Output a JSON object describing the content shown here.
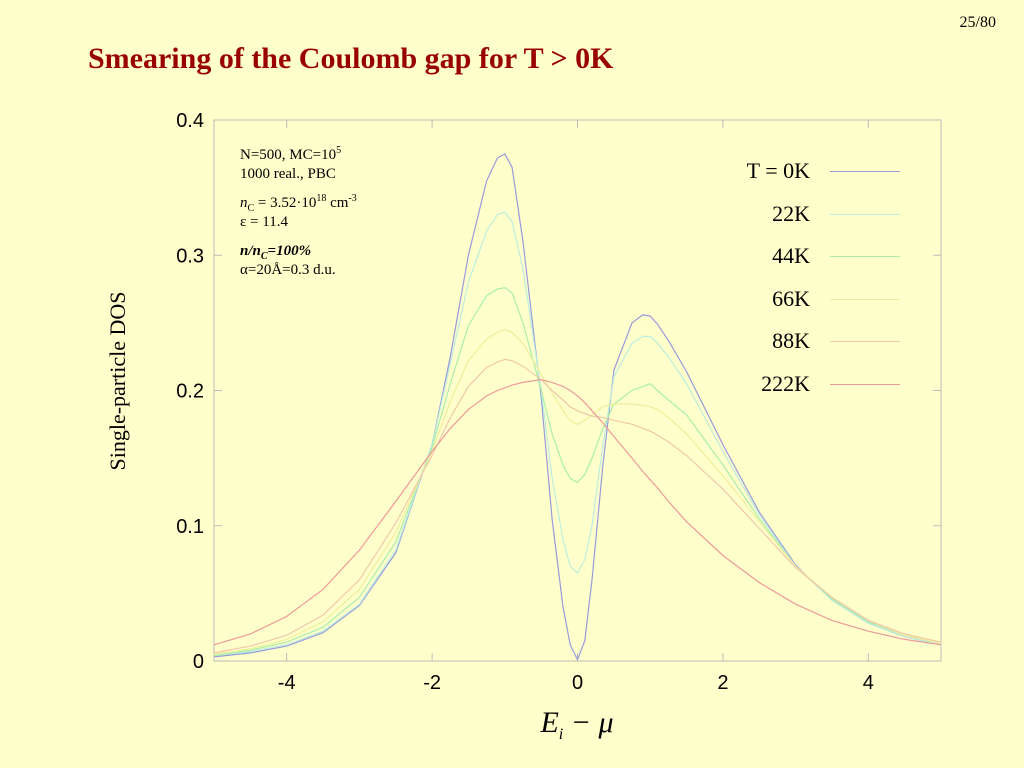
{
  "slide": {
    "number": "25/80",
    "title": "Smearing of the Coulomb gap for T > 0K"
  },
  "annotations": {
    "line1": "N=500, MC=10",
    "line1_sup": "5",
    "line2": "1000 real., PBC",
    "line3_n": "n",
    "line3_sub": "C",
    "line3_mid": " = 3.52·10",
    "line3_sup": "18",
    "line3_unit": " cm",
    "line3_unit_sup": "-3",
    "line4": "ε = 11.4",
    "line5_a": "n/n",
    "line5_sub": "C",
    "line5_b": "=100%",
    "line6": "α=20Å=0.3 d.u."
  },
  "chart_data": {
    "type": "line",
    "title": "",
    "xlabel": "E_i − μ",
    "xlabel_parts": {
      "E": "E",
      "sub": "i",
      "rest": " − μ"
    },
    "ylabel": "Single-particle DOS",
    "xlim": [
      -5,
      5
    ],
    "ylim": [
      0,
      0.4
    ],
    "xticks": [
      -4,
      -2,
      0,
      2,
      4
    ],
    "xtick_labels": [
      "-4",
      "-2",
      "0",
      "2",
      "4"
    ],
    "yticks": [
      0,
      0.1,
      0.2,
      0.3,
      0.4
    ],
    "ytick_labels": [
      "0",
      "0.1",
      "0.2",
      "0.3",
      "0.4"
    ],
    "grid": false,
    "legend_position": "top-right",
    "series": [
      {
        "name": "T = 0K",
        "color": "#9999DD",
        "x": [
          -5,
          -4.5,
          -4,
          -3.5,
          -3,
          -2.5,
          -2,
          -1.75,
          -1.5,
          -1.25,
          -1.1,
          -1,
          -0.9,
          -0.75,
          -0.5,
          -0.35,
          -0.2,
          -0.1,
          0,
          0.1,
          0.2,
          0.35,
          0.5,
          0.75,
          0.9,
          1,
          1.1,
          1.25,
          1.5,
          2,
          2.5,
          3,
          3.5,
          4,
          4.5,
          5
        ],
        "y": [
          0.003,
          0.006,
          0.011,
          0.021,
          0.041,
          0.08,
          0.16,
          0.225,
          0.3,
          0.355,
          0.372,
          0.375,
          0.365,
          0.31,
          0.195,
          0.105,
          0.04,
          0.012,
          0.001,
          0.015,
          0.06,
          0.145,
          0.215,
          0.25,
          0.256,
          0.255,
          0.249,
          0.237,
          0.214,
          0.16,
          0.11,
          0.071,
          0.045,
          0.028,
          0.018,
          0.012
        ]
      },
      {
        "name": "22K",
        "color": "#BBEEDD",
        "x": [
          -5,
          -4.5,
          -4,
          -3.5,
          -3,
          -2.5,
          -2,
          -1.75,
          -1.5,
          -1.25,
          -1.1,
          -1,
          -0.9,
          -0.75,
          -0.5,
          -0.35,
          -0.2,
          -0.1,
          0,
          0.1,
          0.2,
          0.35,
          0.5,
          0.75,
          0.9,
          1,
          1.1,
          1.25,
          1.5,
          2,
          2.5,
          3,
          3.5,
          4,
          4.5,
          5
        ],
        "y": [
          0.004,
          0.007,
          0.012,
          0.022,
          0.042,
          0.082,
          0.16,
          0.22,
          0.28,
          0.318,
          0.33,
          0.332,
          0.325,
          0.29,
          0.2,
          0.135,
          0.09,
          0.07,
          0.065,
          0.075,
          0.1,
          0.16,
          0.21,
          0.235,
          0.24,
          0.24,
          0.235,
          0.225,
          0.205,
          0.155,
          0.108,
          0.07,
          0.045,
          0.028,
          0.018,
          0.012
        ]
      },
      {
        "name": "44K",
        "color": "#AAEEAA",
        "x": [
          -5,
          -4.5,
          -4,
          -3.5,
          -3,
          -2.5,
          -2,
          -1.75,
          -1.5,
          -1.25,
          -1.1,
          -1,
          -0.9,
          -0.75,
          -0.5,
          -0.35,
          -0.2,
          -0.1,
          0,
          0.1,
          0.2,
          0.35,
          0.5,
          0.75,
          0.9,
          1,
          1.1,
          1.25,
          1.5,
          2,
          2.5,
          3,
          3.5,
          4,
          4.5,
          5
        ],
        "y": [
          0.004,
          0.008,
          0.014,
          0.025,
          0.047,
          0.088,
          0.158,
          0.205,
          0.248,
          0.27,
          0.275,
          0.276,
          0.272,
          0.25,
          0.2,
          0.168,
          0.145,
          0.135,
          0.132,
          0.138,
          0.15,
          0.172,
          0.19,
          0.2,
          0.203,
          0.205,
          0.2,
          0.193,
          0.182,
          0.145,
          0.105,
          0.07,
          0.046,
          0.029,
          0.019,
          0.013
        ]
      },
      {
        "name": "66K",
        "color": "#EEEE99",
        "x": [
          -5,
          -4.5,
          -4,
          -3.5,
          -3,
          -2.5,
          -2,
          -1.75,
          -1.5,
          -1.25,
          -1.1,
          -1,
          -0.9,
          -0.75,
          -0.5,
          -0.35,
          -0.2,
          -0.1,
          0,
          0.1,
          0.2,
          0.35,
          0.5,
          0.75,
          0.9,
          1,
          1.1,
          1.25,
          1.5,
          2,
          2.5,
          3,
          3.5,
          4,
          4.5,
          5
        ],
        "y": [
          0.005,
          0.009,
          0.016,
          0.029,
          0.053,
          0.095,
          0.155,
          0.192,
          0.222,
          0.238,
          0.243,
          0.245,
          0.243,
          0.235,
          0.212,
          0.198,
          0.185,
          0.178,
          0.175,
          0.178,
          0.182,
          0.188,
          0.19,
          0.19,
          0.189,
          0.188,
          0.186,
          0.18,
          0.168,
          0.137,
          0.103,
          0.07,
          0.047,
          0.03,
          0.019,
          0.013
        ]
      },
      {
        "name": "88K",
        "color": "#F0C8A8",
        "x": [
          -5,
          -4.5,
          -4,
          -3.5,
          -3,
          -2.5,
          -2,
          -1.75,
          -1.5,
          -1.25,
          -1.1,
          -1,
          -0.9,
          -0.75,
          -0.5,
          -0.35,
          -0.2,
          -0.1,
          0,
          0.1,
          0.2,
          0.35,
          0.5,
          0.75,
          0.9,
          1,
          1.1,
          1.25,
          1.5,
          2,
          2.5,
          3,
          3.5,
          4,
          4.5,
          5
        ],
        "y": [
          0.006,
          0.011,
          0.019,
          0.034,
          0.06,
          0.102,
          0.152,
          0.18,
          0.203,
          0.217,
          0.221,
          0.223,
          0.222,
          0.218,
          0.208,
          0.2,
          0.193,
          0.188,
          0.185,
          0.183,
          0.181,
          0.18,
          0.178,
          0.175,
          0.172,
          0.17,
          0.167,
          0.162,
          0.152,
          0.127,
          0.098,
          0.069,
          0.047,
          0.03,
          0.02,
          0.014
        ]
      },
      {
        "name": "222K",
        "color": "#EE9999",
        "x": [
          -5,
          -4.5,
          -4,
          -3.5,
          -3,
          -2.5,
          -2,
          -1.75,
          -1.5,
          -1.25,
          -1.1,
          -1,
          -0.9,
          -0.75,
          -0.5,
          -0.35,
          -0.2,
          -0.1,
          0,
          0.1,
          0.2,
          0.35,
          0.5,
          0.75,
          0.9,
          1,
          1.1,
          1.25,
          1.5,
          2,
          2.5,
          3,
          3.5,
          4,
          4.5,
          5
        ],
        "y": [
          0.012,
          0.02,
          0.033,
          0.053,
          0.082,
          0.118,
          0.155,
          0.172,
          0.186,
          0.196,
          0.2,
          0.202,
          0.204,
          0.206,
          0.208,
          0.206,
          0.203,
          0.2,
          0.196,
          0.191,
          0.185,
          0.176,
          0.166,
          0.15,
          0.14,
          0.134,
          0.128,
          0.118,
          0.103,
          0.078,
          0.058,
          0.042,
          0.03,
          0.022,
          0.016,
          0.012
        ]
      }
    ]
  }
}
